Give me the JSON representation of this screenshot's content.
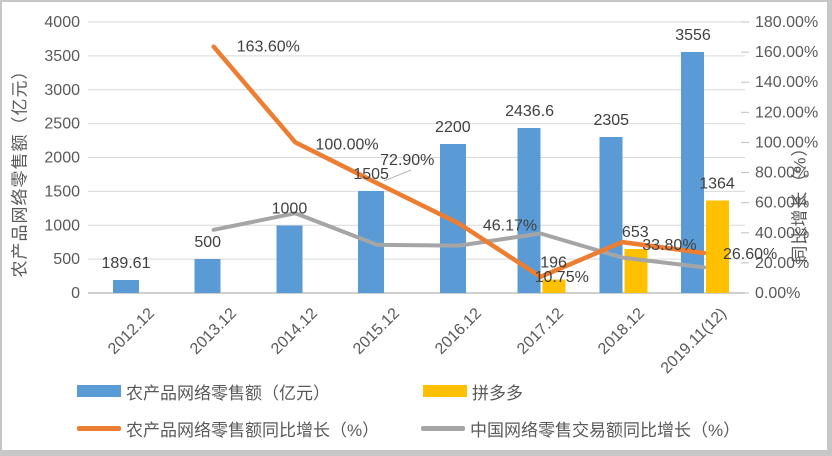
{
  "colors": {
    "bar_blue": "#5B9BD5",
    "bar_yellow": "#FFC000",
    "line_orange": "#ED7D31",
    "line_gray": "#A5A5A5",
    "gridline": "#D9D9D9",
    "axis_line": "#BFBFBF",
    "tick_text": "#595959",
    "data_label_text": "#404040",
    "frame_border": "#C7C7C7",
    "background": "#FFFFFF"
  },
  "chart_data": {
    "type": "bar",
    "subtype": "combo bar + line, dual y-axis",
    "categories": [
      "2012.12",
      "2013.12",
      "2014.12",
      "2015.12",
      "2016.12",
      "2017.12",
      "2018.12",
      "2019.11(12)"
    ],
    "series": [
      {
        "name": "农产品网络零售额（亿元）",
        "type": "bar",
        "axis": "left",
        "color": "#5B9BD5",
        "values": [
          189.61,
          500,
          1000,
          1505,
          2200,
          2436.6,
          2305,
          3556
        ],
        "labels": [
          "189.61",
          "500",
          "1000",
          "1505",
          "2200",
          "2436.6",
          "2305",
          "3556"
        ]
      },
      {
        "name": "拼多多",
        "type": "bar",
        "axis": "left",
        "color": "#FFC000",
        "values": [
          null,
          null,
          null,
          null,
          null,
          196,
          653,
          1364
        ],
        "labels": [
          null,
          null,
          null,
          null,
          null,
          "196",
          "653",
          "1364"
        ]
      },
      {
        "name": "农产品网络零售额同比增长（%）",
        "type": "line",
        "axis": "right",
        "color": "#ED7D31",
        "values": [
          null,
          163.6,
          100.0,
          72.9,
          46.17,
          10.75,
          33.8,
          26.6
        ],
        "labels": [
          null,
          "163.60%",
          "100.00%",
          "72.90%",
          "46.17%",
          "10.75%",
          "33.80%",
          "26.60%"
        ]
      },
      {
        "name": "中国网络零售交易额同比增长（%）",
        "type": "line",
        "axis": "right",
        "color": "#A5A5A5",
        "values_are_estimates": true,
        "values": [
          null,
          42,
          53,
          32,
          31.5,
          39.5,
          23.5,
          17
        ],
        "labels": null
      }
    ],
    "left_axis": {
      "title": "农产品网络零售额（亿元）",
      "min": 0,
      "max": 4000,
      "step": 500,
      "tick_labels": [
        "4000",
        "3500",
        "3000",
        "2500",
        "2000",
        "1500",
        "1000",
        "500",
        "0"
      ]
    },
    "right_axis": {
      "title": "同比增长（%）",
      "min": 0,
      "max": 180,
      "step": 20,
      "tick_labels": [
        "180.00%",
        "160.00%",
        "140.00%",
        "120.00%",
        "100.00%",
        "80.00%",
        "60.00%",
        "40.00%",
        "20.00%",
        "0.00%"
      ]
    },
    "grid": "horizontal gridlines at left-axis steps",
    "legend_position": "bottom, two columns, two rows",
    "legend": [
      "农产品网络零售额（亿元）",
      "拼多多",
      "农产品网络零售额同比增长（%）",
      "中国网络零售交易额同比增长（%）"
    ]
  }
}
